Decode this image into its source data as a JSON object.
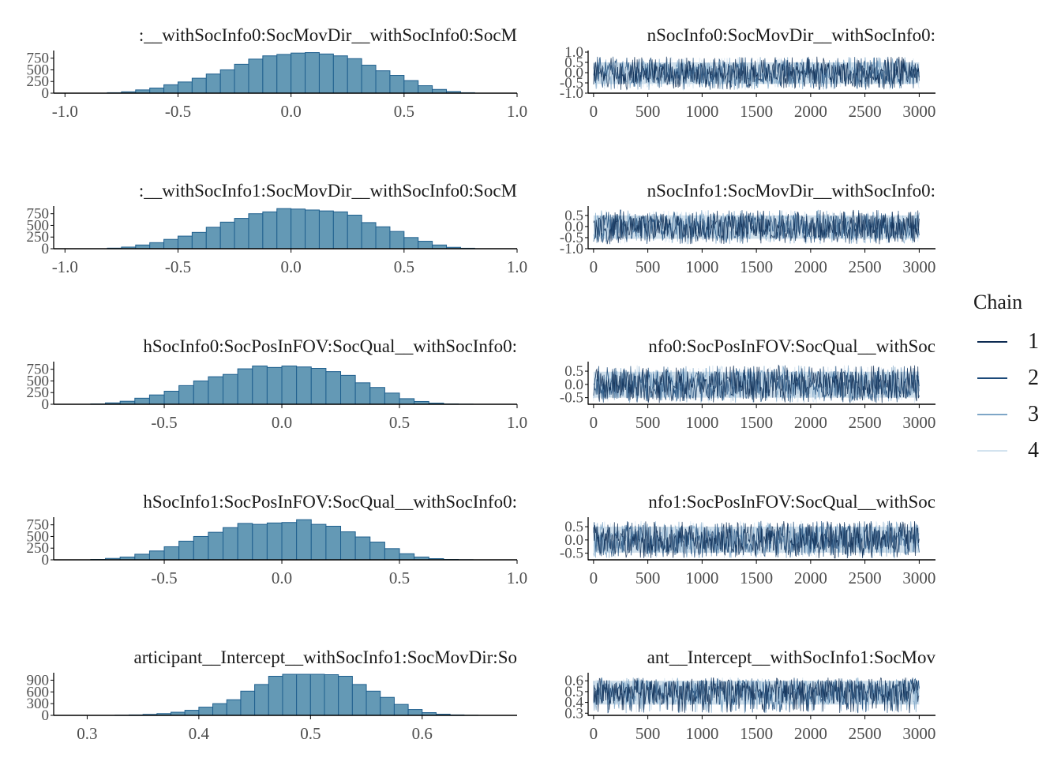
{
  "colors": {
    "bar_fill": "#6499b5",
    "bar_stroke": "#1f5f8e",
    "axis": "#000000",
    "tick_text": "#4d4d4d",
    "title_text": "#1a1a1a",
    "trace_band": "#cfdfeb",
    "chains": [
      "#0d2b52",
      "#1c4a79",
      "#7ea6c7",
      "#d3e3ef"
    ]
  },
  "legend": {
    "title": "Chain",
    "items": [
      {
        "label": "1",
        "color": "#0d2b52"
      },
      {
        "label": "2",
        "color": "#1c4a79"
      },
      {
        "label": "3",
        "color": "#7ea6c7"
      },
      {
        "label": "4",
        "color": "#d3e3ef"
      }
    ]
  },
  "chart_data": [
    {
      "type": "bar",
      "kind": "histogram",
      "title": ":__withSocInfo0:SocMovDir__withSocInfo0:SocM",
      "x_range": [
        -1.05,
        1.0
      ],
      "x_ticks": [
        -1.0,
        -0.5,
        0.0,
        0.5,
        1.0
      ],
      "x_tick_labels": [
        "-1.0",
        "-0.5",
        "0.0",
        "0.5",
        "1.0"
      ],
      "y_range": [
        0,
        880
      ],
      "y_ticks": [
        0,
        250,
        500,
        750
      ],
      "y_tick_labels": [
        "0",
        "250",
        "500",
        "750"
      ],
      "bin_width": 0.0625,
      "bin_starts": [
        -0.8125,
        -0.75,
        -0.6875,
        -0.625,
        -0.5625,
        -0.5,
        -0.4375,
        -0.375,
        -0.3125,
        -0.25,
        -0.1875,
        -0.125,
        -0.0625,
        0.0,
        0.0625,
        0.125,
        0.1875,
        0.25,
        0.3125,
        0.375,
        0.4375,
        0.5,
        0.5625,
        0.625,
        0.6875,
        0.75
      ],
      "counts": [
        10,
        30,
        70,
        110,
        180,
        240,
        320,
        410,
        500,
        620,
        730,
        800,
        830,
        860,
        870,
        840,
        800,
        740,
        600,
        480,
        380,
        270,
        160,
        80,
        35,
        10
      ]
    },
    {
      "type": "line",
      "kind": "trace",
      "title": "nSocInfo0:SocMovDir__withSocInfo0:",
      "x_range": [
        -50,
        3150
      ],
      "x_ticks": [
        0,
        500,
        1000,
        1500,
        2000,
        2500,
        3000
      ],
      "x_tick_labels": [
        "0",
        "500",
        "1000",
        "1500",
        "2000",
        "2500",
        "3000"
      ],
      "y_range": [
        -1.0,
        1.0
      ],
      "y_ticks": [
        -1.0,
        -0.5,
        0.0,
        0.5,
        1.0
      ],
      "y_tick_labels": [
        "-1.0",
        "-0.5",
        "0.0",
        "0.5",
        "1.0"
      ],
      "iterations": 3000,
      "chains": [
        "1",
        "2",
        "3",
        "4"
      ],
      "band": [
        -0.55,
        0.5
      ],
      "spikes": [
        -0.85,
        0.78
      ]
    },
    {
      "type": "bar",
      "kind": "histogram",
      "title": ":__withSocInfo1:SocMovDir__withSocInfo0:SocM",
      "x_range": [
        -1.05,
        1.0
      ],
      "x_ticks": [
        -1.0,
        -0.5,
        0.0,
        0.5,
        1.0
      ],
      "x_tick_labels": [
        "-1.0",
        "-0.5",
        "0.0",
        "0.5",
        "1.0"
      ],
      "y_range": [
        0,
        880
      ],
      "y_ticks": [
        0,
        250,
        500,
        750
      ],
      "y_tick_labels": [
        "0",
        "250",
        "500",
        "750"
      ],
      "bin_width": 0.0625,
      "bin_starts": [
        -0.8125,
        -0.75,
        -0.6875,
        -0.625,
        -0.5625,
        -0.5,
        -0.4375,
        -0.375,
        -0.3125,
        -0.25,
        -0.1875,
        -0.125,
        -0.0625,
        0.0,
        0.0625,
        0.125,
        0.1875,
        0.25,
        0.3125,
        0.375,
        0.4375,
        0.5,
        0.5625,
        0.625,
        0.6875,
        0.75
      ],
      "counts": [
        12,
        35,
        80,
        130,
        200,
        270,
        350,
        460,
        570,
        650,
        750,
        790,
        860,
        850,
        830,
        810,
        790,
        720,
        560,
        470,
        370,
        240,
        160,
        80,
        30,
        10
      ]
    },
    {
      "type": "line",
      "kind": "trace",
      "title": "nSocInfo1:SocMovDir__withSocInfo0:",
      "x_range": [
        -50,
        3150
      ],
      "x_ticks": [
        0,
        500,
        1000,
        1500,
        2000,
        2500,
        3000
      ],
      "x_tick_labels": [
        "0",
        "500",
        "1000",
        "1500",
        "2000",
        "2500",
        "3000"
      ],
      "y_range": [
        -1.0,
        0.85
      ],
      "y_ticks": [
        -1.0,
        -0.5,
        0.0,
        0.5
      ],
      "y_tick_labels": [
        "-1.0",
        "-0.5",
        "0.0",
        "0.5"
      ],
      "iterations": 3000,
      "chains": [
        "1",
        "2",
        "3",
        "4"
      ],
      "band": [
        -0.55,
        0.5
      ],
      "spikes": [
        -0.8,
        0.75
      ]
    },
    {
      "type": "bar",
      "kind": "histogram",
      "title": "hSocInfo0:SocPosInFOV:SocQual__withSocInfo0:",
      "x_range": [
        -0.97,
        1.0
      ],
      "x_ticks": [
        -0.5,
        0.0,
        0.5,
        1.0
      ],
      "x_tick_labels": [
        "-0.5",
        "0.0",
        "0.5",
        "1.0"
      ],
      "y_range": [
        0,
        880
      ],
      "y_ticks": [
        0,
        250,
        500,
        750
      ],
      "y_tick_labels": [
        "0",
        "250",
        "500",
        "750"
      ],
      "bin_width": 0.0625,
      "bin_starts": [
        -0.8125,
        -0.75,
        -0.6875,
        -0.625,
        -0.5625,
        -0.5,
        -0.4375,
        -0.375,
        -0.3125,
        -0.25,
        -0.1875,
        -0.125,
        -0.0625,
        0.0,
        0.0625,
        0.125,
        0.1875,
        0.25,
        0.3125,
        0.375,
        0.4375,
        0.5,
        0.5625,
        0.625,
        0.6875,
        0.75
      ],
      "counts": [
        8,
        30,
        65,
        130,
        200,
        280,
        400,
        500,
        590,
        640,
        760,
        820,
        790,
        820,
        800,
        770,
        700,
        620,
        460,
        360,
        240,
        120,
        60,
        25,
        8,
        3
      ]
    },
    {
      "type": "line",
      "kind": "trace",
      "title": "nfo0:SocPosInFOV:SocQual__withSoc",
      "x_range": [
        -50,
        3150
      ],
      "x_ticks": [
        0,
        500,
        1000,
        1500,
        2000,
        2500,
        3000
      ],
      "x_tick_labels": [
        "0",
        "500",
        "1000",
        "1500",
        "2000",
        "2500",
        "3000"
      ],
      "y_range": [
        -0.75,
        0.8
      ],
      "y_ticks": [
        -0.5,
        0.0,
        0.5
      ],
      "y_tick_labels": [
        "-0.5",
        "0.0",
        "0.5"
      ],
      "iterations": 3000,
      "chains": [
        "1",
        "2",
        "3",
        "4"
      ],
      "band": [
        -0.5,
        0.48
      ],
      "spikes": [
        -0.7,
        0.72
      ]
    },
    {
      "type": "bar",
      "kind": "histogram",
      "title": "hSocInfo1:SocPosInFOV:SocQual__withSocInfo0:",
      "x_range": [
        -0.97,
        1.0
      ],
      "x_ticks": [
        -0.5,
        0.0,
        0.5,
        1.0
      ],
      "x_tick_labels": [
        "-0.5",
        "0.0",
        "0.5",
        "1.0"
      ],
      "y_range": [
        0,
        880
      ],
      "y_ticks": [
        0,
        250,
        500,
        750
      ],
      "y_tick_labels": [
        "0",
        "250",
        "500",
        "750"
      ],
      "bin_width": 0.0625,
      "bin_starts": [
        -0.8125,
        -0.75,
        -0.6875,
        -0.625,
        -0.5625,
        -0.5,
        -0.4375,
        -0.375,
        -0.3125,
        -0.25,
        -0.1875,
        -0.125,
        -0.0625,
        0.0,
        0.0625,
        0.125,
        0.1875,
        0.25,
        0.3125,
        0.375,
        0.4375,
        0.5,
        0.5625,
        0.625,
        0.6875,
        0.75
      ],
      "counts": [
        8,
        30,
        60,
        120,
        190,
        280,
        400,
        500,
        590,
        690,
        780,
        760,
        790,
        800,
        860,
        760,
        720,
        600,
        490,
        380,
        240,
        130,
        60,
        25,
        8,
        3
      ]
    },
    {
      "type": "line",
      "kind": "trace",
      "title": "nfo1:SocPosInFOV:SocQual__withSoc",
      "x_range": [
        -50,
        3150
      ],
      "x_ticks": [
        0,
        500,
        1000,
        1500,
        2000,
        2500,
        3000
      ],
      "x_tick_labels": [
        "0",
        "500",
        "1000",
        "1500",
        "2000",
        "2500",
        "3000"
      ],
      "y_range": [
        -0.75,
        0.8
      ],
      "y_ticks": [
        -0.5,
        0.0,
        0.5
      ],
      "y_tick_labels": [
        "-0.5",
        "0.0",
        "0.5"
      ],
      "iterations": 3000,
      "chains": [
        "1",
        "2",
        "3",
        "4"
      ],
      "band": [
        -0.48,
        0.5
      ],
      "spikes": [
        -0.7,
        0.72
      ]
    },
    {
      "type": "bar",
      "kind": "histogram",
      "title": "articipant__Intercept__withSocInfo1:SocMovDir:So",
      "x_range": [
        0.27,
        0.685
      ],
      "x_ticks": [
        0.3,
        0.4,
        0.5,
        0.6
      ],
      "x_tick_labels": [
        "0.3",
        "0.4",
        "0.5",
        "0.6"
      ],
      "y_range": [
        0,
        1050
      ],
      "y_ticks": [
        0,
        300,
        600,
        900
      ],
      "y_tick_labels": [
        "0",
        "300",
        "600",
        "900"
      ],
      "bin_width": 0.0125,
      "bin_starts": [
        0.325,
        0.3375,
        0.35,
        0.3625,
        0.375,
        0.3875,
        0.4,
        0.4125,
        0.425,
        0.4375,
        0.45,
        0.4625,
        0.475,
        0.4875,
        0.5,
        0.5125,
        0.525,
        0.5375,
        0.55,
        0.5625,
        0.575,
        0.5875,
        0.6,
        0.6125,
        0.625,
        0.6375
      ],
      "counts": [
        5,
        12,
        25,
        45,
        80,
        130,
        210,
        300,
        400,
        620,
        790,
        1000,
        1050,
        1050,
        1050,
        1040,
        1000,
        790,
        620,
        460,
        280,
        150,
        70,
        30,
        12,
        4
      ]
    },
    {
      "type": "line",
      "kind": "trace",
      "title": "ant__Intercept__withSocInfo1:SocMov",
      "x_range": [
        -50,
        3150
      ],
      "x_ticks": [
        0,
        500,
        1000,
        1500,
        2000,
        2500,
        3000
      ],
      "x_tick_labels": [
        "0",
        "500",
        "1000",
        "1500",
        "2000",
        "2500",
        "3000"
      ],
      "y_range": [
        0.28,
        0.66
      ],
      "y_ticks": [
        0.3,
        0.4,
        0.5,
        0.6
      ],
      "y_tick_labels": [
        "0.3",
        "0.4",
        "0.5",
        "0.6"
      ],
      "iterations": 3000,
      "chains": [
        "1",
        "2",
        "3",
        "4"
      ],
      "band": [
        0.38,
        0.6
      ],
      "spikes": [
        0.3,
        0.63
      ]
    }
  ]
}
